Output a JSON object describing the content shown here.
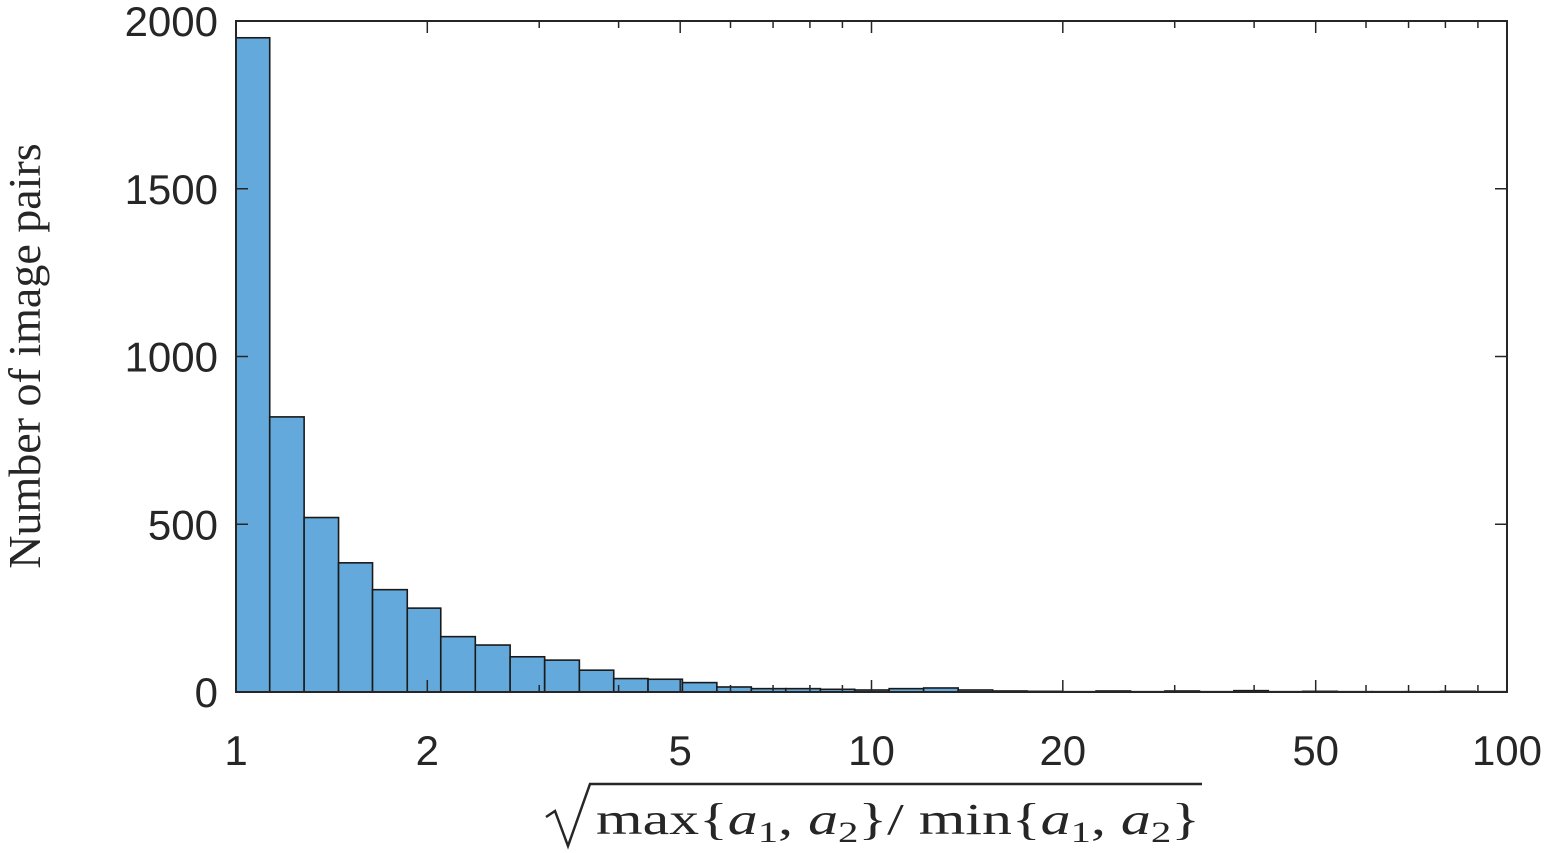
{
  "chart_data": {
    "type": "bar",
    "title": "",
    "xlabel": "√ max{a1, a2} / min{a1, a2}",
    "ylabel": "Number of image pairs",
    "xscale": "log",
    "xlim": [
      1,
      100
    ],
    "ylim": [
      0,
      2000
    ],
    "grid": false,
    "bar_color": "#64a9db",
    "edge_color": "#1a1a1a",
    "xticks": [
      1,
      2,
      5,
      10,
      20,
      50,
      100
    ],
    "xtick_labels": [
      "1",
      "2",
      "5",
      "10",
      "20",
      "50",
      "100"
    ],
    "yticks": [
      0,
      500,
      1000,
      1500,
      2000
    ],
    "ytick_labels": [
      "0",
      "500",
      "1000",
      "1500",
      "2000"
    ],
    "bins": [
      {
        "x0": 1.0,
        "x1": 1.13,
        "count": 1950
      },
      {
        "x0": 1.13,
        "x1": 1.28,
        "count": 820
      },
      {
        "x0": 1.28,
        "x1": 1.45,
        "count": 520
      },
      {
        "x0": 1.45,
        "x1": 1.64,
        "count": 385
      },
      {
        "x0": 1.64,
        "x1": 1.86,
        "count": 305
      },
      {
        "x0": 1.86,
        "x1": 2.1,
        "count": 250
      },
      {
        "x0": 2.1,
        "x1": 2.38,
        "count": 165
      },
      {
        "x0": 2.38,
        "x1": 2.7,
        "count": 140
      },
      {
        "x0": 2.7,
        "x1": 3.06,
        "count": 105
      },
      {
        "x0": 3.06,
        "x1": 3.47,
        "count": 95
      },
      {
        "x0": 3.47,
        "x1": 3.93,
        "count": 65
      },
      {
        "x0": 3.93,
        "x1": 4.45,
        "count": 40
      },
      {
        "x0": 4.45,
        "x1": 5.04,
        "count": 38
      },
      {
        "x0": 5.04,
        "x1": 5.71,
        "count": 28
      },
      {
        "x0": 5.71,
        "x1": 6.47,
        "count": 15
      },
      {
        "x0": 6.47,
        "x1": 7.33,
        "count": 10
      },
      {
        "x0": 7.33,
        "x1": 8.31,
        "count": 10
      },
      {
        "x0": 8.31,
        "x1": 9.41,
        "count": 8
      },
      {
        "x0": 9.41,
        "x1": 10.66,
        "count": 6
      },
      {
        "x0": 10.66,
        "x1": 12.08,
        "count": 10
      },
      {
        "x0": 12.08,
        "x1": 13.69,
        "count": 12
      },
      {
        "x0": 13.69,
        "x1": 15.51,
        "count": 6
      },
      {
        "x0": 15.51,
        "x1": 17.57,
        "count": 3
      },
      {
        "x0": 17.57,
        "x1": 19.91,
        "count": 2
      },
      {
        "x0": 19.91,
        "x1": 22.56,
        "count": 1
      },
      {
        "x0": 22.56,
        "x1": 25.56,
        "count": 3
      },
      {
        "x0": 25.56,
        "x1": 28.96,
        "count": 1
      },
      {
        "x0": 28.96,
        "x1": 32.81,
        "count": 3
      },
      {
        "x0": 32.81,
        "x1": 37.17,
        "count": 1
      },
      {
        "x0": 37.17,
        "x1": 42.11,
        "count": 4
      },
      {
        "x0": 42.11,
        "x1": 47.71,
        "count": 1
      },
      {
        "x0": 47.71,
        "x1": 54.05,
        "count": 2
      },
      {
        "x0": 54.05,
        "x1": 61.24,
        "count": 1
      },
      {
        "x0": 61.24,
        "x1": 69.38,
        "count": 1
      },
      {
        "x0": 69.38,
        "x1": 78.61,
        "count": 1
      },
      {
        "x0": 78.61,
        "x1": 89.06,
        "count": 2
      },
      {
        "x0": 89.06,
        "x1": 100.0,
        "count": 1
      }
    ]
  }
}
